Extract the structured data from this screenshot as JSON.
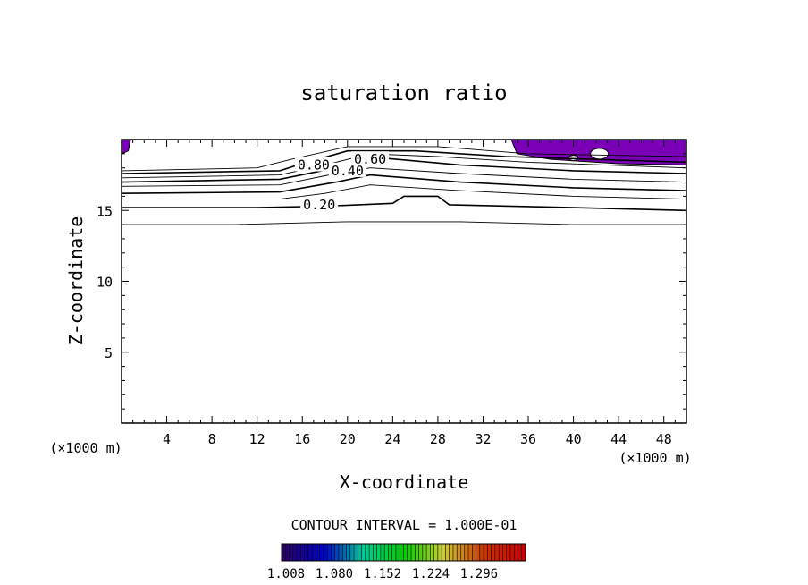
{
  "chart_data": {
    "type": "contour",
    "title": "saturation ratio",
    "xlabel": "X-coordinate",
    "ylabel": "Z-coordinate",
    "x_unit_left": "(×1000 m)",
    "x_unit_right": "(×1000 m)",
    "xlim": [
      0,
      50
    ],
    "ylim": [
      0,
      20
    ],
    "x_ticks": [
      4,
      8,
      12,
      16,
      20,
      24,
      28,
      32,
      36,
      40,
      44,
      48
    ],
    "y_ticks": [
      5,
      10,
      15
    ],
    "contour_interval_text": "CONTOUR INTERVAL = 1.000E-01",
    "contour_labels": [
      {
        "text": "0.20",
        "x": 17.5,
        "y": 15.4
      },
      {
        "text": "0.40",
        "x": 20.0,
        "y": 17.8
      },
      {
        "text": "0.60",
        "x": 22.0,
        "y": 18.6
      },
      {
        "text": "0.80",
        "x": 17.0,
        "y": 18.2
      }
    ],
    "contours": [
      {
        "level": 0.1,
        "points": [
          [
            0,
            14.0
          ],
          [
            10,
            14.0
          ],
          [
            20,
            14.2
          ],
          [
            30,
            14.2
          ],
          [
            40,
            14.0
          ],
          [
            50,
            14.0
          ]
        ]
      },
      {
        "level": 0.2,
        "points": [
          [
            0,
            15.2
          ],
          [
            12,
            15.2
          ],
          [
            18,
            15.3
          ],
          [
            24,
            15.5
          ],
          [
            25,
            16.0
          ],
          [
            28,
            16.0
          ],
          [
            29,
            15.4
          ],
          [
            40,
            15.2
          ],
          [
            50,
            15.0
          ]
        ]
      },
      {
        "level": 0.3,
        "points": [
          [
            0,
            15.8
          ],
          [
            14,
            15.8
          ],
          [
            18,
            16.2
          ],
          [
            22,
            16.8
          ],
          [
            30,
            16.4
          ],
          [
            40,
            16.0
          ],
          [
            50,
            15.8
          ]
        ]
      },
      {
        "level": 0.4,
        "points": [
          [
            0,
            16.2
          ],
          [
            14,
            16.3
          ],
          [
            19,
            17.0
          ],
          [
            22,
            17.5
          ],
          [
            30,
            17.0
          ],
          [
            40,
            16.6
          ],
          [
            50,
            16.4
          ]
        ]
      },
      {
        "level": 0.5,
        "points": [
          [
            0,
            16.7
          ],
          [
            14,
            16.8
          ],
          [
            19,
            17.6
          ],
          [
            22,
            18.0
          ],
          [
            30,
            17.6
          ],
          [
            40,
            17.2
          ],
          [
            50,
            17.0
          ]
        ]
      },
      {
        "level": 0.6,
        "points": [
          [
            0,
            17.0
          ],
          [
            14,
            17.2
          ],
          [
            19,
            18.0
          ],
          [
            23,
            18.7
          ],
          [
            30,
            18.2
          ],
          [
            40,
            17.8
          ],
          [
            50,
            17.6
          ]
        ]
      },
      {
        "level": 0.7,
        "points": [
          [
            0,
            17.3
          ],
          [
            14,
            17.5
          ],
          [
            18,
            18.2
          ],
          [
            22,
            19.0
          ],
          [
            28,
            18.8
          ],
          [
            36,
            18.4
          ],
          [
            50,
            18.0
          ]
        ]
      },
      {
        "level": 0.8,
        "points": [
          [
            0,
            17.6
          ],
          [
            14,
            17.8
          ],
          [
            16,
            18.3
          ],
          [
            20,
            19.2
          ],
          [
            26,
            19.2
          ],
          [
            34,
            18.8
          ],
          [
            50,
            18.4
          ]
        ]
      },
      {
        "level": 0.9,
        "points": [
          [
            0,
            17.8
          ],
          [
            12,
            18.0
          ],
          [
            15,
            18.6
          ],
          [
            20,
            19.5
          ],
          [
            28,
            19.5
          ],
          [
            36,
            19.0
          ],
          [
            50,
            18.8
          ]
        ]
      }
    ],
    "shaded_region_color": "#7a00b8",
    "colorbar": {
      "tick_labels": [
        "1.008",
        "1.080",
        "1.152",
        "1.224",
        "1.296"
      ],
      "colors": [
        "#2a0066",
        "#0000cc",
        "#00cc99",
        "#00cc00",
        "#cccc33",
        "#cc3300",
        "#cc0000"
      ]
    }
  }
}
